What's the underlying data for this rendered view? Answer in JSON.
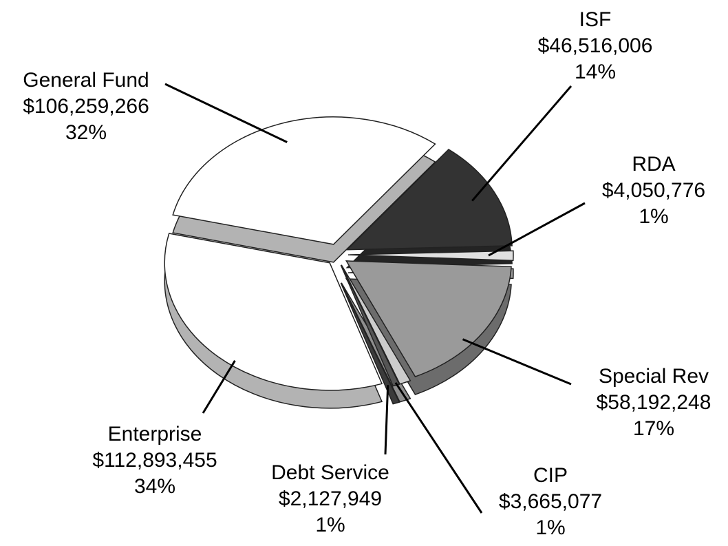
{
  "chart_data": {
    "type": "pie",
    "categories": [
      "ISF",
      "RDA",
      "Special Rev",
      "CIP",
      "Debt Service",
      "Enterprise",
      "General Fund"
    ],
    "values": [
      46516006,
      4050776,
      58192248,
      3665077,
      2127949,
      112893455,
      106259266
    ],
    "value_labels": [
      "$46,516,006",
      "$4,050,776",
      "$58,192,248",
      "$3,665,077",
      "$2,127,949",
      "$112,893,455",
      "$106,259,266"
    ],
    "share_labels": [
      "14%",
      "1%",
      "17%",
      "1%",
      "1%",
      "34%",
      "32%"
    ],
    "colors": [
      "#333333",
      "#e0e0e0",
      "#9a9a9a",
      "#cccccc",
      "#555555",
      "#ffffff",
      "#ffffff"
    ]
  }
}
